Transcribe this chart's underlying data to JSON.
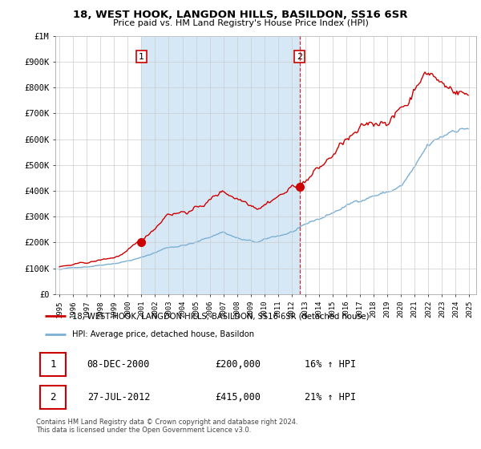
{
  "title": "18, WEST HOOK, LANGDON HILLS, BASILDON, SS16 6SR",
  "subtitle": "Price paid vs. HM Land Registry's House Price Index (HPI)",
  "legend_line1": "18, WEST HOOK, LANGDON HILLS, BASILDON, SS16 6SR (detached house)",
  "legend_line2": "HPI: Average price, detached house, Basildon",
  "transaction1_label": "1",
  "transaction1_date": "08-DEC-2000",
  "transaction1_price": "£200,000",
  "transaction1_hpi": "16% ↑ HPI",
  "transaction2_label": "2",
  "transaction2_date": "27-JUL-2012",
  "transaction2_price": "£415,000",
  "transaction2_hpi": "21% ↑ HPI",
  "footer": "Contains HM Land Registry data © Crown copyright and database right 2024.\nThis data is licensed under the Open Government Licence v3.0.",
  "red_line_color": "#cc0000",
  "blue_line_color": "#7bafd4",
  "shade_color": "#d6e8f5",
  "marker_color": "#cc0000",
  "dashed_color": "#cc0000",
  "annotation_box_color": "#cc0000",
  "grid_color": "#cccccc",
  "bg_color": "#ffffff",
  "ylim": [
    0,
    1000000
  ],
  "yticks": [
    0,
    100000,
    200000,
    300000,
    400000,
    500000,
    600000,
    700000,
    800000,
    900000,
    1000000
  ],
  "ytick_labels": [
    "£0",
    "£100K",
    "£200K",
    "£300K",
    "£400K",
    "£500K",
    "£600K",
    "£700K",
    "£800K",
    "£900K",
    "£1M"
  ],
  "trans1_x": 2001.0,
  "trans1_y": 200000,
  "trans2_x": 2012.58,
  "trans2_y": 415000,
  "xtick_years": [
    1995,
    1996,
    1997,
    1998,
    1999,
    2000,
    2001,
    2002,
    2003,
    2004,
    2005,
    2006,
    2007,
    2008,
    2009,
    2010,
    2011,
    2012,
    2013,
    2014,
    2015,
    2016,
    2017,
    2018,
    2019,
    2020,
    2021,
    2022,
    2023,
    2024,
    2025
  ]
}
